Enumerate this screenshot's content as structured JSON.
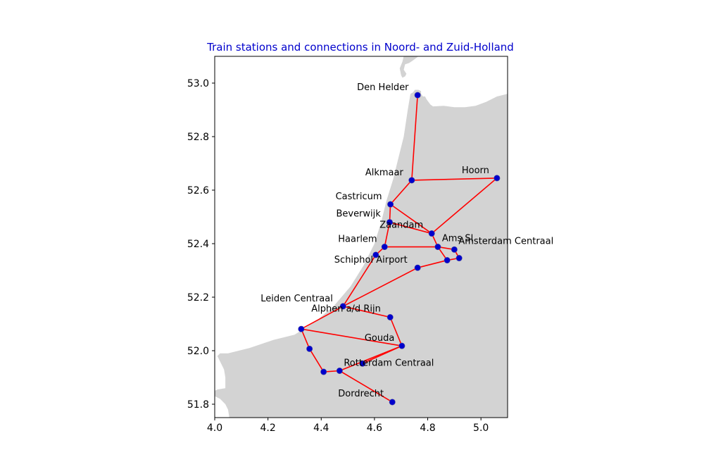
{
  "map": {
    "title": "Train stations and connections in  Noord- and Zuid-Holland",
    "xlim": [
      4.0,
      5.1
    ],
    "ylim": [
      51.75,
      53.1
    ],
    "x_ticks": [
      {
        "value": 4.0,
        "label": "4.0"
      },
      {
        "value": 4.2,
        "label": "4.2"
      },
      {
        "value": 4.4,
        "label": "4.4"
      },
      {
        "value": 4.6,
        "label": "4.6"
      },
      {
        "value": 4.8,
        "label": "4.8"
      },
      {
        "value": 5.0,
        "label": "5.0"
      }
    ],
    "y_ticks": [
      {
        "value": 51.8,
        "label": "51.8"
      },
      {
        "value": 52.0,
        "label": "52.0"
      },
      {
        "value": 52.2,
        "label": "52.2"
      },
      {
        "value": 52.4,
        "label": "52.4"
      },
      {
        "value": 52.6,
        "label": "52.6"
      },
      {
        "value": 52.8,
        "label": "52.8"
      },
      {
        "value": 53.0,
        "label": "53.0"
      }
    ],
    "colors": {
      "land": "#d3d3d3",
      "connection": "#ff0000",
      "station": "#0000cc",
      "title": "#0000cc"
    },
    "land_outline": [
      [
        5.1,
        52.96
      ],
      [
        5.06,
        52.95
      ],
      [
        5.02,
        52.93
      ],
      [
        4.98,
        52.915
      ],
      [
        4.94,
        52.91
      ],
      [
        4.9,
        52.91
      ],
      [
        4.86,
        52.915
      ],
      [
        4.82,
        52.913
      ],
      [
        4.81,
        52.92
      ],
      [
        4.795,
        52.94
      ],
      [
        4.79,
        52.95
      ],
      [
        4.782,
        52.95
      ],
      [
        4.775,
        52.96
      ],
      [
        4.775,
        52.97
      ],
      [
        4.765,
        52.975
      ],
      [
        4.752,
        52.975
      ],
      [
        4.745,
        52.965
      ],
      [
        4.735,
        52.96
      ],
      [
        4.725,
        52.9
      ],
      [
        4.71,
        52.8
      ],
      [
        4.69,
        52.72
      ],
      [
        4.67,
        52.64
      ],
      [
        4.645,
        52.56
      ],
      [
        4.625,
        52.48
      ],
      [
        4.6,
        52.4
      ],
      [
        4.56,
        52.32
      ],
      [
        4.51,
        52.24
      ],
      [
        4.45,
        52.17
      ],
      [
        4.38,
        52.11
      ],
      [
        4.3,
        52.06
      ],
      [
        4.22,
        52.04
      ],
      [
        4.13,
        52.01
      ],
      [
        4.05,
        51.99
      ],
      [
        4.02,
        51.99
      ],
      [
        4.01,
        51.98
      ],
      [
        4.02,
        51.96
      ],
      [
        4.035,
        51.93
      ],
      [
        4.04,
        51.9
      ],
      [
        4.04,
        51.86
      ],
      [
        4.01,
        51.855
      ],
      [
        4.0,
        51.85
      ],
      [
        4.0,
        51.83
      ],
      [
        4.02,
        51.82
      ],
      [
        4.04,
        51.8
      ],
      [
        4.05,
        51.78
      ],
      [
        4.055,
        51.75
      ],
      [
        5.1,
        51.75
      ]
    ],
    "land_island": [
      [
        4.71,
        53.1
      ],
      [
        4.765,
        53.1
      ],
      [
        4.745,
        53.085
      ],
      [
        4.73,
        53.075
      ],
      [
        4.715,
        53.07
      ],
      [
        4.71,
        53.05
      ],
      [
        4.72,
        53.035
      ],
      [
        4.715,
        53.025
      ],
      [
        4.705,
        53.02
      ],
      [
        4.7,
        53.03
      ],
      [
        4.695,
        53.055
      ],
      [
        4.705,
        53.08
      ]
    ],
    "stations": [
      {
        "id": "den-helder",
        "name": "Den Helder",
        "lon": 4.762,
        "lat": 52.955,
        "label_dx": -86,
        "label_dy": -7
      },
      {
        "id": "alkmaar",
        "name": "Alkmaar",
        "lon": 4.74,
        "lat": 52.637,
        "label_dx": -66,
        "label_dy": -7
      },
      {
        "id": "hoorn",
        "name": "Hoorn",
        "lon": 5.06,
        "lat": 52.645,
        "label_dx": -50,
        "label_dy": -7
      },
      {
        "id": "castricum",
        "name": "Castricum",
        "lon": 4.66,
        "lat": 52.547,
        "label_dx": -78,
        "label_dy": -7
      },
      {
        "id": "beverwijk",
        "name": "Beverwijk",
        "lon": 4.657,
        "lat": 52.48,
        "label_dx": -76,
        "label_dy": -8
      },
      {
        "id": "zaandam",
        "name": "Zaandam",
        "lon": 4.815,
        "lat": 52.438,
        "label_dx": -74,
        "label_dy": -8
      },
      {
        "id": "haarlem",
        "name": "Haarlem",
        "lon": 4.638,
        "lat": 52.388,
        "label_dx": -66,
        "label_dy": -7
      },
      {
        "id": "ams-sloterdijk",
        "name": "Ams Sl",
        "lon": 4.838,
        "lat": 52.388,
        "label_dx": 6,
        "label_dy": -8
      },
      {
        "id": "amsterdam-centraal",
        "name": "Amsterdam Centraal",
        "lon": 4.9,
        "lat": 52.378,
        "label_dx": 6,
        "label_dy": -8
      },
      {
        "id": "amstel",
        "name": "",
        "lon": 4.918,
        "lat": 52.346,
        "label_dx": 0,
        "label_dy": 0
      },
      {
        "id": "duivendrecht",
        "name": "",
        "lon": 4.873,
        "lat": 52.338,
        "label_dx": 0,
        "label_dy": 0
      },
      {
        "id": "schiphol",
        "name": "Schiphol Airport",
        "lon": 4.605,
        "lat": 52.358,
        "label_dx": -59,
        "label_dy": 11
      },
      {
        "id": "hoofddorp",
        "name": "",
        "lon": 4.762,
        "lat": 52.31,
        "label_dx": 0,
        "label_dy": 0
      },
      {
        "id": "leiden",
        "name": "Leiden Centraal",
        "lon": 4.482,
        "lat": 52.166,
        "label_dx": -117,
        "label_dy": -7
      },
      {
        "id": "alphen",
        "name": "Alphen a/d Rijn",
        "lon": 4.659,
        "lat": 52.125,
        "label_dx": -112,
        "label_dy": -8
      },
      {
        "id": "den-haag",
        "name": "",
        "lon": 4.325,
        "lat": 52.081,
        "label_dx": 0,
        "label_dy": 0
      },
      {
        "id": "gouda",
        "name": "Gouda",
        "lon": 4.703,
        "lat": 52.018,
        "label_dx": -53,
        "label_dy": -7
      },
      {
        "id": "delft",
        "name": "",
        "lon": 4.356,
        "lat": 52.007,
        "label_dx": 0,
        "label_dy": 0
      },
      {
        "id": "rotterdam-alexander",
        "name": "",
        "lon": 4.555,
        "lat": 51.952,
        "label_dx": 0,
        "label_dy": 0
      },
      {
        "id": "rotterdam-centraal",
        "name": "Rotterdam Centraal",
        "lon": 4.469,
        "lat": 51.925,
        "label_dx": 6,
        "label_dy": -7
      },
      {
        "id": "schiedam",
        "name": "",
        "lon": 4.409,
        "lat": 51.921,
        "label_dx": 0,
        "label_dy": 0
      },
      {
        "id": "dordrecht",
        "name": "Dordrecht",
        "lon": 4.667,
        "lat": 51.808,
        "label_dx": -77,
        "label_dy": -8
      }
    ],
    "connections": [
      [
        "den-helder",
        "alkmaar"
      ],
      [
        "alkmaar",
        "hoorn"
      ],
      [
        "alkmaar",
        "castricum"
      ],
      [
        "hoorn",
        "zaandam"
      ],
      [
        "castricum",
        "zaandam"
      ],
      [
        "castricum",
        "beverwijk"
      ],
      [
        "beverwijk",
        "zaandam"
      ],
      [
        "beverwijk",
        "haarlem"
      ],
      [
        "zaandam",
        "ams-sloterdijk"
      ],
      [
        "haarlem",
        "ams-sloterdijk"
      ],
      [
        "haarlem",
        "schiphol"
      ],
      [
        "ams-sloterdijk",
        "amsterdam-centraal"
      ],
      [
        "ams-sloterdijk",
        "duivendrecht"
      ],
      [
        "amsterdam-centraal",
        "amstel"
      ],
      [
        "amstel",
        "duivendrecht"
      ],
      [
        "duivendrecht",
        "hoofddorp"
      ],
      [
        "schiphol",
        "leiden"
      ],
      [
        "hoofddorp",
        "leiden"
      ],
      [
        "leiden",
        "alphen"
      ],
      [
        "leiden",
        "den-haag"
      ],
      [
        "alphen",
        "gouda"
      ],
      [
        "den-haag",
        "gouda"
      ],
      [
        "den-haag",
        "delft"
      ],
      [
        "delft",
        "schiedam"
      ],
      [
        "schiedam",
        "rotterdam-centraal"
      ],
      [
        "rotterdam-centraal",
        "gouda"
      ],
      [
        "gouda",
        "rotterdam-alexander"
      ],
      [
        "rotterdam-centraal",
        "dordrecht"
      ]
    ]
  }
}
